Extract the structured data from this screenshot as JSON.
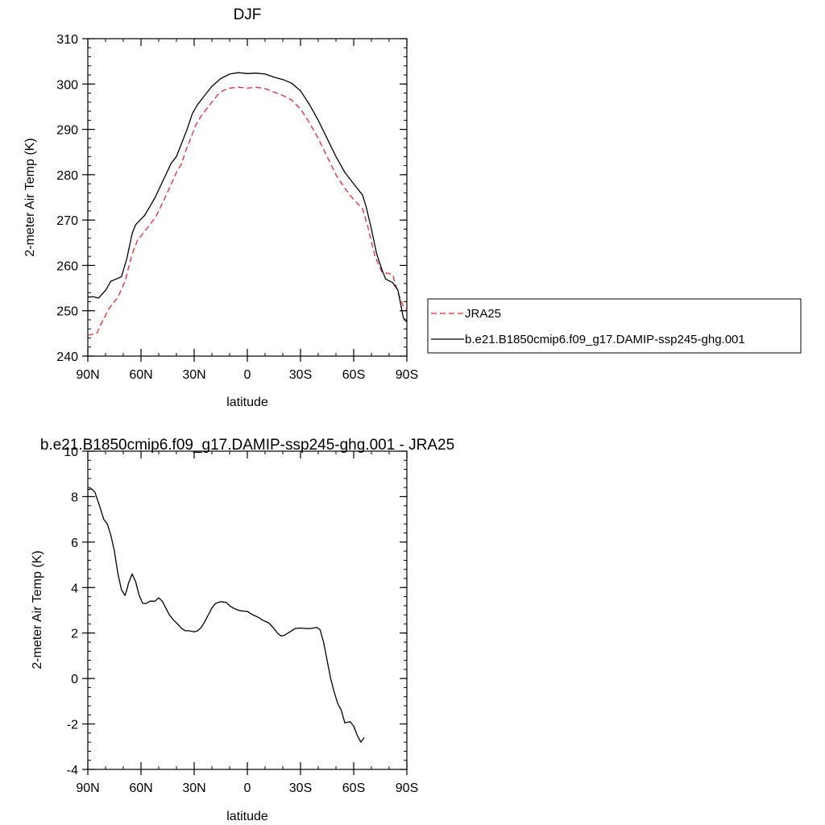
{
  "chart_data": [
    {
      "type": "line",
      "title": "DJF",
      "xlabel": "latitude",
      "ylabel": "2-meter Air Temp (K)",
      "xlim": [
        -90,
        90
      ],
      "ylim": [
        240,
        310
      ],
      "xticks": [
        -90,
        -60,
        -30,
        0,
        30,
        60,
        90
      ],
      "xtick_labels": [
        "90N",
        "60N",
        "30N",
        "0",
        "30S",
        "60S",
        "90S"
      ],
      "yticks": [
        240,
        250,
        260,
        270,
        280,
        290,
        300,
        310
      ],
      "ytick_labels": [
        "240",
        "250",
        "260",
        "270",
        "280",
        "290",
        "300",
        "310"
      ],
      "legend_position": "right",
      "series": [
        {
          "name": "JRA25",
          "color": "#e8282d",
          "dash": "dashed",
          "points": [
            [
              -90,
              244.6
            ],
            [
              -85,
              245.0
            ],
            [
              -82,
              247.5
            ],
            [
              -78,
              250.5
            ],
            [
              -73,
              253.0
            ],
            [
              -69,
              256.5
            ],
            [
              -65,
              262.5
            ],
            [
              -62,
              265.5
            ],
            [
              -58,
              267.5
            ],
            [
              -55,
              269.0
            ],
            [
              -52,
              270.5
            ],
            [
              -50,
              272.0
            ],
            [
              -47,
              274.5
            ],
            [
              -44,
              277.0
            ],
            [
              -40,
              280.5
            ],
            [
              -37,
              282.5
            ],
            [
              -35,
              285.0
            ],
            [
              -32,
              288.0
            ],
            [
              -29,
              291.0
            ],
            [
              -26,
              293.0
            ],
            [
              -23,
              294.5
            ],
            [
              -20,
              296.0
            ],
            [
              -17,
              297.5
            ],
            [
              -14,
              298.5
            ],
            [
              -10,
              299.1
            ],
            [
              -5,
              299.3
            ],
            [
              0,
              299.1
            ],
            [
              5,
              299.3
            ],
            [
              10,
              299.0
            ],
            [
              15,
              298.2
            ],
            [
              20,
              297.5
            ],
            [
              25,
              296.5
            ],
            [
              30,
              294.5
            ],
            [
              35,
              291.5
            ],
            [
              40,
              288.0
            ],
            [
              45,
              284.0
            ],
            [
              50,
              280.0
            ],
            [
              55,
              277.0
            ],
            [
              60,
              274.5
            ],
            [
              65,
              272.5
            ],
            [
              68,
              268.5
            ],
            [
              72,
              262.0
            ],
            [
              76,
              258.5
            ],
            [
              80,
              258.2
            ],
            [
              82,
              258.0
            ],
            [
              85,
              254.0
            ],
            [
              88,
              251.0
            ],
            [
              90,
              250.2
            ]
          ]
        },
        {
          "name": "b.e21.B1850cmip6.f09_g17.DAMIP-ssp245-ghg.001",
          "color": "#000000",
          "dash": "solid",
          "points": [
            [
              -90,
              253.0
            ],
            [
              -87,
              253.1
            ],
            [
              -84,
              252.8
            ],
            [
              -80,
              254.5
            ],
            [
              -77,
              256.5
            ],
            [
              -74,
              257.0
            ],
            [
              -71,
              257.5
            ],
            [
              -68,
              261.5
            ],
            [
              -65,
              267.0
            ],
            [
              -63,
              269.0
            ],
            [
              -58,
              271.0
            ],
            [
              -55,
              273.0
            ],
            [
              -52,
              275.0
            ],
            [
              -49,
              277.5
            ],
            [
              -46,
              280.0
            ],
            [
              -43,
              282.5
            ],
            [
              -40,
              284.0
            ],
            [
              -37,
              287.0
            ],
            [
              -34,
              290.0
            ],
            [
              -31,
              293.5
            ],
            [
              -28,
              295.5
            ],
            [
              -24,
              297.5
            ],
            [
              -20,
              299.5
            ],
            [
              -15,
              301.2
            ],
            [
              -10,
              302.2
            ],
            [
              -5,
              302.5
            ],
            [
              0,
              302.3
            ],
            [
              5,
              302.4
            ],
            [
              10,
              302.2
            ],
            [
              15,
              301.5
            ],
            [
              20,
              301.0
            ],
            [
              25,
              300.2
            ],
            [
              30,
              298.5
            ],
            [
              35,
              295.5
            ],
            [
              40,
              292.0
            ],
            [
              45,
              288.0
            ],
            [
              50,
              284.0
            ],
            [
              55,
              280.5
            ],
            [
              60,
              278.0
            ],
            [
              65,
              275.5
            ],
            [
              67,
              273.0
            ],
            [
              70,
              268.0
            ],
            [
              73,
              262.5
            ],
            [
              76,
              259.0
            ],
            [
              78,
              257.0
            ],
            [
              82,
              256.2
            ],
            [
              85,
              254.5
            ],
            [
              87,
              250.5
            ],
            [
              88,
              248.5
            ],
            [
              90,
              247.5
            ]
          ]
        }
      ]
    },
    {
      "type": "line",
      "title": "b.e21.B1850cmip6.f09_g17.DAMIP-ssp245-ghg.001 - JRA25",
      "xlabel": "latitude",
      "ylabel": "2-meter Air Temp (K)",
      "xlim": [
        -90,
        90
      ],
      "ylim": [
        -4,
        10
      ],
      "xticks": [
        -90,
        -60,
        -30,
        0,
        30,
        60,
        90
      ],
      "xtick_labels": [
        "90N",
        "60N",
        "30N",
        "0",
        "30S",
        "60S",
        "90S"
      ],
      "yticks": [
        -4,
        -2,
        0,
        2,
        4,
        6,
        8,
        10
      ],
      "ytick_labels": [
        "-4",
        "-2",
        "0",
        "2",
        "4",
        "6",
        "8",
        "10"
      ],
      "series": [
        {
          "color": "#000000",
          "dash": "solid",
          "points": [
            [
              -90,
              8.3
            ],
            [
              -88,
              8.35
            ],
            [
              -86,
              8.2
            ],
            [
              -83,
              7.5
            ],
            [
              -81,
              7.0
            ],
            [
              -79,
              6.8
            ],
            [
              -77,
              6.3
            ],
            [
              -75,
              5.6
            ],
            [
              -73,
              4.6
            ],
            [
              -71,
              3.9
            ],
            [
              -69,
              3.65
            ],
            [
              -68,
              3.9
            ],
            [
              -67,
              4.2
            ],
            [
              -65,
              4.6
            ],
            [
              -63,
              4.25
            ],
            [
              -61,
              3.65
            ],
            [
              -59,
              3.3
            ],
            [
              -57,
              3.3
            ],
            [
              -55,
              3.4
            ],
            [
              -52,
              3.4
            ],
            [
              -50,
              3.55
            ],
            [
              -48,
              3.4
            ],
            [
              -46,
              3.1
            ],
            [
              -44,
              2.8
            ],
            [
              -42,
              2.6
            ],
            [
              -40,
              2.45
            ],
            [
              -37,
              2.2
            ],
            [
              -35,
              2.1
            ],
            [
              -33,
              2.1
            ],
            [
              -30,
              2.05
            ],
            [
              -28,
              2.1
            ],
            [
              -26,
              2.25
            ],
            [
              -24,
              2.5
            ],
            [
              -22,
              2.8
            ],
            [
              -20,
              3.1
            ],
            [
              -18,
              3.3
            ],
            [
              -15,
              3.38
            ],
            [
              -12,
              3.35
            ],
            [
              -10,
              3.2
            ],
            [
              -8,
              3.1
            ],
            [
              -5,
              3.0
            ],
            [
              -3,
              2.97
            ],
            [
              0,
              2.95
            ],
            [
              3,
              2.8
            ],
            [
              6,
              2.7
            ],
            [
              9,
              2.55
            ],
            [
              12,
              2.45
            ],
            [
              15,
              2.2
            ],
            [
              17,
              2.0
            ],
            [
              19,
              1.87
            ],
            [
              21,
              1.9
            ],
            [
              24,
              2.05
            ],
            [
              27,
              2.2
            ],
            [
              30,
              2.22
            ],
            [
              33,
              2.2
            ],
            [
              36,
              2.2
            ],
            [
              39,
              2.25
            ],
            [
              41,
              2.15
            ],
            [
              43,
              1.6
            ],
            [
              45,
              0.8
            ],
            [
              47,
              0.0
            ],
            [
              49,
              -0.6
            ],
            [
              51,
              -1.1
            ],
            [
              53,
              -1.4
            ],
            [
              55,
              -1.95
            ],
            [
              58,
              -1.9
            ],
            [
              60,
              -2.1
            ],
            [
              62,
              -2.5
            ],
            [
              64,
              -2.8
            ],
            [
              66,
              -2.6
            ]
          ]
        }
      ]
    }
  ]
}
